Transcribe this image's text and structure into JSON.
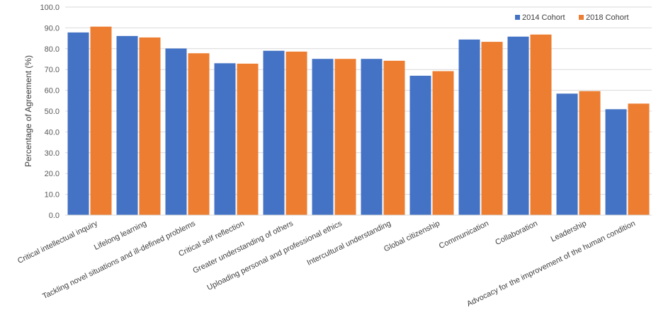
{
  "chart_data": {
    "type": "bar",
    "title": "",
    "xlabel": "",
    "ylabel": "Percentage of Agreement (%)",
    "ylim": [
      0,
      100
    ],
    "yticks": [
      "0.0",
      "10.0",
      "20.0",
      "30.0",
      "40.0",
      "50.0",
      "60.0",
      "70.0",
      "80.0",
      "90.0",
      "100.0"
    ],
    "grid": true,
    "legend_position": "top-right",
    "categories": [
      "Critical intellectual inquiry",
      "Lifelong learning",
      "Tackling novel situations and ill-defined problems",
      "Critical self reflection",
      "Greater understanding of others",
      "Uploading personal and professional ethics",
      "Intercultural understanding",
      "Global citizenship",
      "Communication",
      "Collaboration",
      "Leadership",
      "Advocacy for the improvement of the human condition"
    ],
    "series": [
      {
        "name": "2014 Cohort",
        "color": "#4472C4",
        "values": [
          87.8,
          86.1,
          80.1,
          73.0,
          79.0,
          75.1,
          75.1,
          67.0,
          84.4,
          85.8,
          58.4,
          50.9
        ]
      },
      {
        "name": "2018 Cohort",
        "color": "#ED7D31",
        "values": [
          90.6,
          85.4,
          77.8,
          72.8,
          78.6,
          75.1,
          74.2,
          69.2,
          83.3,
          86.8,
          59.6,
          53.6
        ]
      }
    ]
  }
}
